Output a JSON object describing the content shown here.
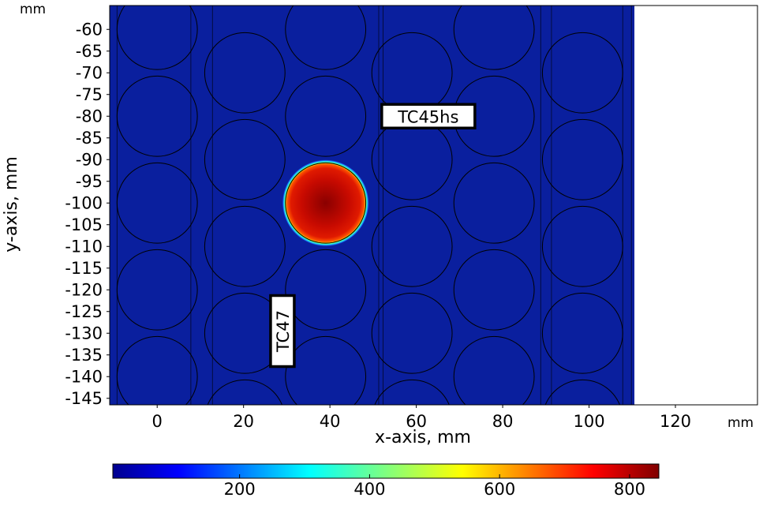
{
  "chart_data": {
    "type": "heatmap",
    "title": "",
    "xlabel": "x-axis, mm",
    "ylabel": "y-axis, mm",
    "x_unit": "mm",
    "y_unit": "mm",
    "xlim": [
      -11,
      139
    ],
    "ylim": [
      -146.5,
      -54.5
    ],
    "x_ticks": [
      0,
      20,
      40,
      60,
      80,
      100,
      120
    ],
    "y_ticks": [
      -60,
      -65,
      -70,
      -75,
      -80,
      -85,
      -90,
      -95,
      -100,
      -105,
      -110,
      -115,
      -120,
      -125,
      -130,
      -135,
      -140,
      -145
    ],
    "domain_x": [
      -11.5,
      110.5
    ],
    "grid": false,
    "background_value_color": "#0a1f9e",
    "hotspot": {
      "center": [
        39,
        -100
      ],
      "radius": 9.3,
      "peak_value": 840
    },
    "annotations": [
      {
        "text": "TC45hs",
        "x": 52,
        "y": -80,
        "orientation": "horizontal"
      },
      {
        "text": "TC47",
        "x": 29,
        "y": -129.5,
        "orientation": "vertical"
      }
    ],
    "colorbar": {
      "ticks": [
        200,
        400,
        600,
        800
      ],
      "range": [
        5,
        845
      ],
      "colormap": "jet",
      "position": "bottom"
    },
    "element_columns": [
      {
        "x": 0,
        "y": [
          -60,
          -80,
          -100,
          -120,
          -140
        ]
      },
      {
        "x": 20.3,
        "y": [
          -70,
          -90,
          -110,
          -130,
          -150
        ]
      },
      {
        "x": 39,
        "y": [
          -60,
          -80,
          -100,
          -120,
          -140
        ]
      },
      {
        "x": 59,
        "y": [
          -70,
          -90,
          -110,
          -130,
          -150
        ]
      },
      {
        "x": 78,
        "y": [
          -60,
          -80,
          -100,
          -120,
          -140
        ]
      },
      {
        "x": 98.5,
        "y": [
          -70,
          -90,
          -110,
          -130,
          -150
        ]
      }
    ],
    "element_radius": 9.3,
    "separator_lines_x": [
      -9.3,
      7.8,
      12.8,
      51.3,
      52.3,
      88.8,
      91.3,
      107.8,
      109.8
    ]
  }
}
